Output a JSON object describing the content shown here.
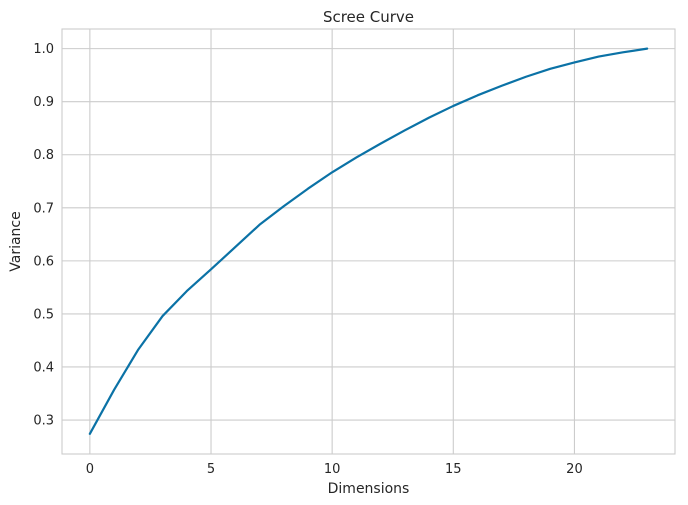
{
  "chart_data": {
    "type": "line",
    "title": "Scree Curve",
    "xlabel": "Dimensions",
    "ylabel": "Variance",
    "xlim": [
      -1.15,
      24.15
    ],
    "ylim": [
      0.236,
      1.037
    ],
    "x_ticks": [
      0,
      5,
      10,
      15,
      20
    ],
    "y_ticks": [
      0.3,
      0.4,
      0.5,
      0.6,
      0.7,
      0.8,
      0.9,
      1.0
    ],
    "grid": true,
    "legend": false,
    "line_color": "#0b72a6",
    "series": [
      {
        "x": [
          0,
          1,
          2,
          3,
          4,
          5,
          6,
          7,
          8,
          9,
          10,
          11,
          12,
          13,
          14,
          15,
          16,
          17,
          18,
          19,
          20,
          21,
          22,
          23
        ],
        "values": [
          0.274,
          0.357,
          0.433,
          0.496,
          0.543,
          0.584,
          0.626,
          0.668,
          0.703,
          0.736,
          0.767,
          0.795,
          0.821,
          0.846,
          0.87,
          0.892,
          0.912,
          0.93,
          0.947,
          0.962,
          0.974,
          0.985,
          0.993,
          1.0
        ]
      }
    ]
  }
}
